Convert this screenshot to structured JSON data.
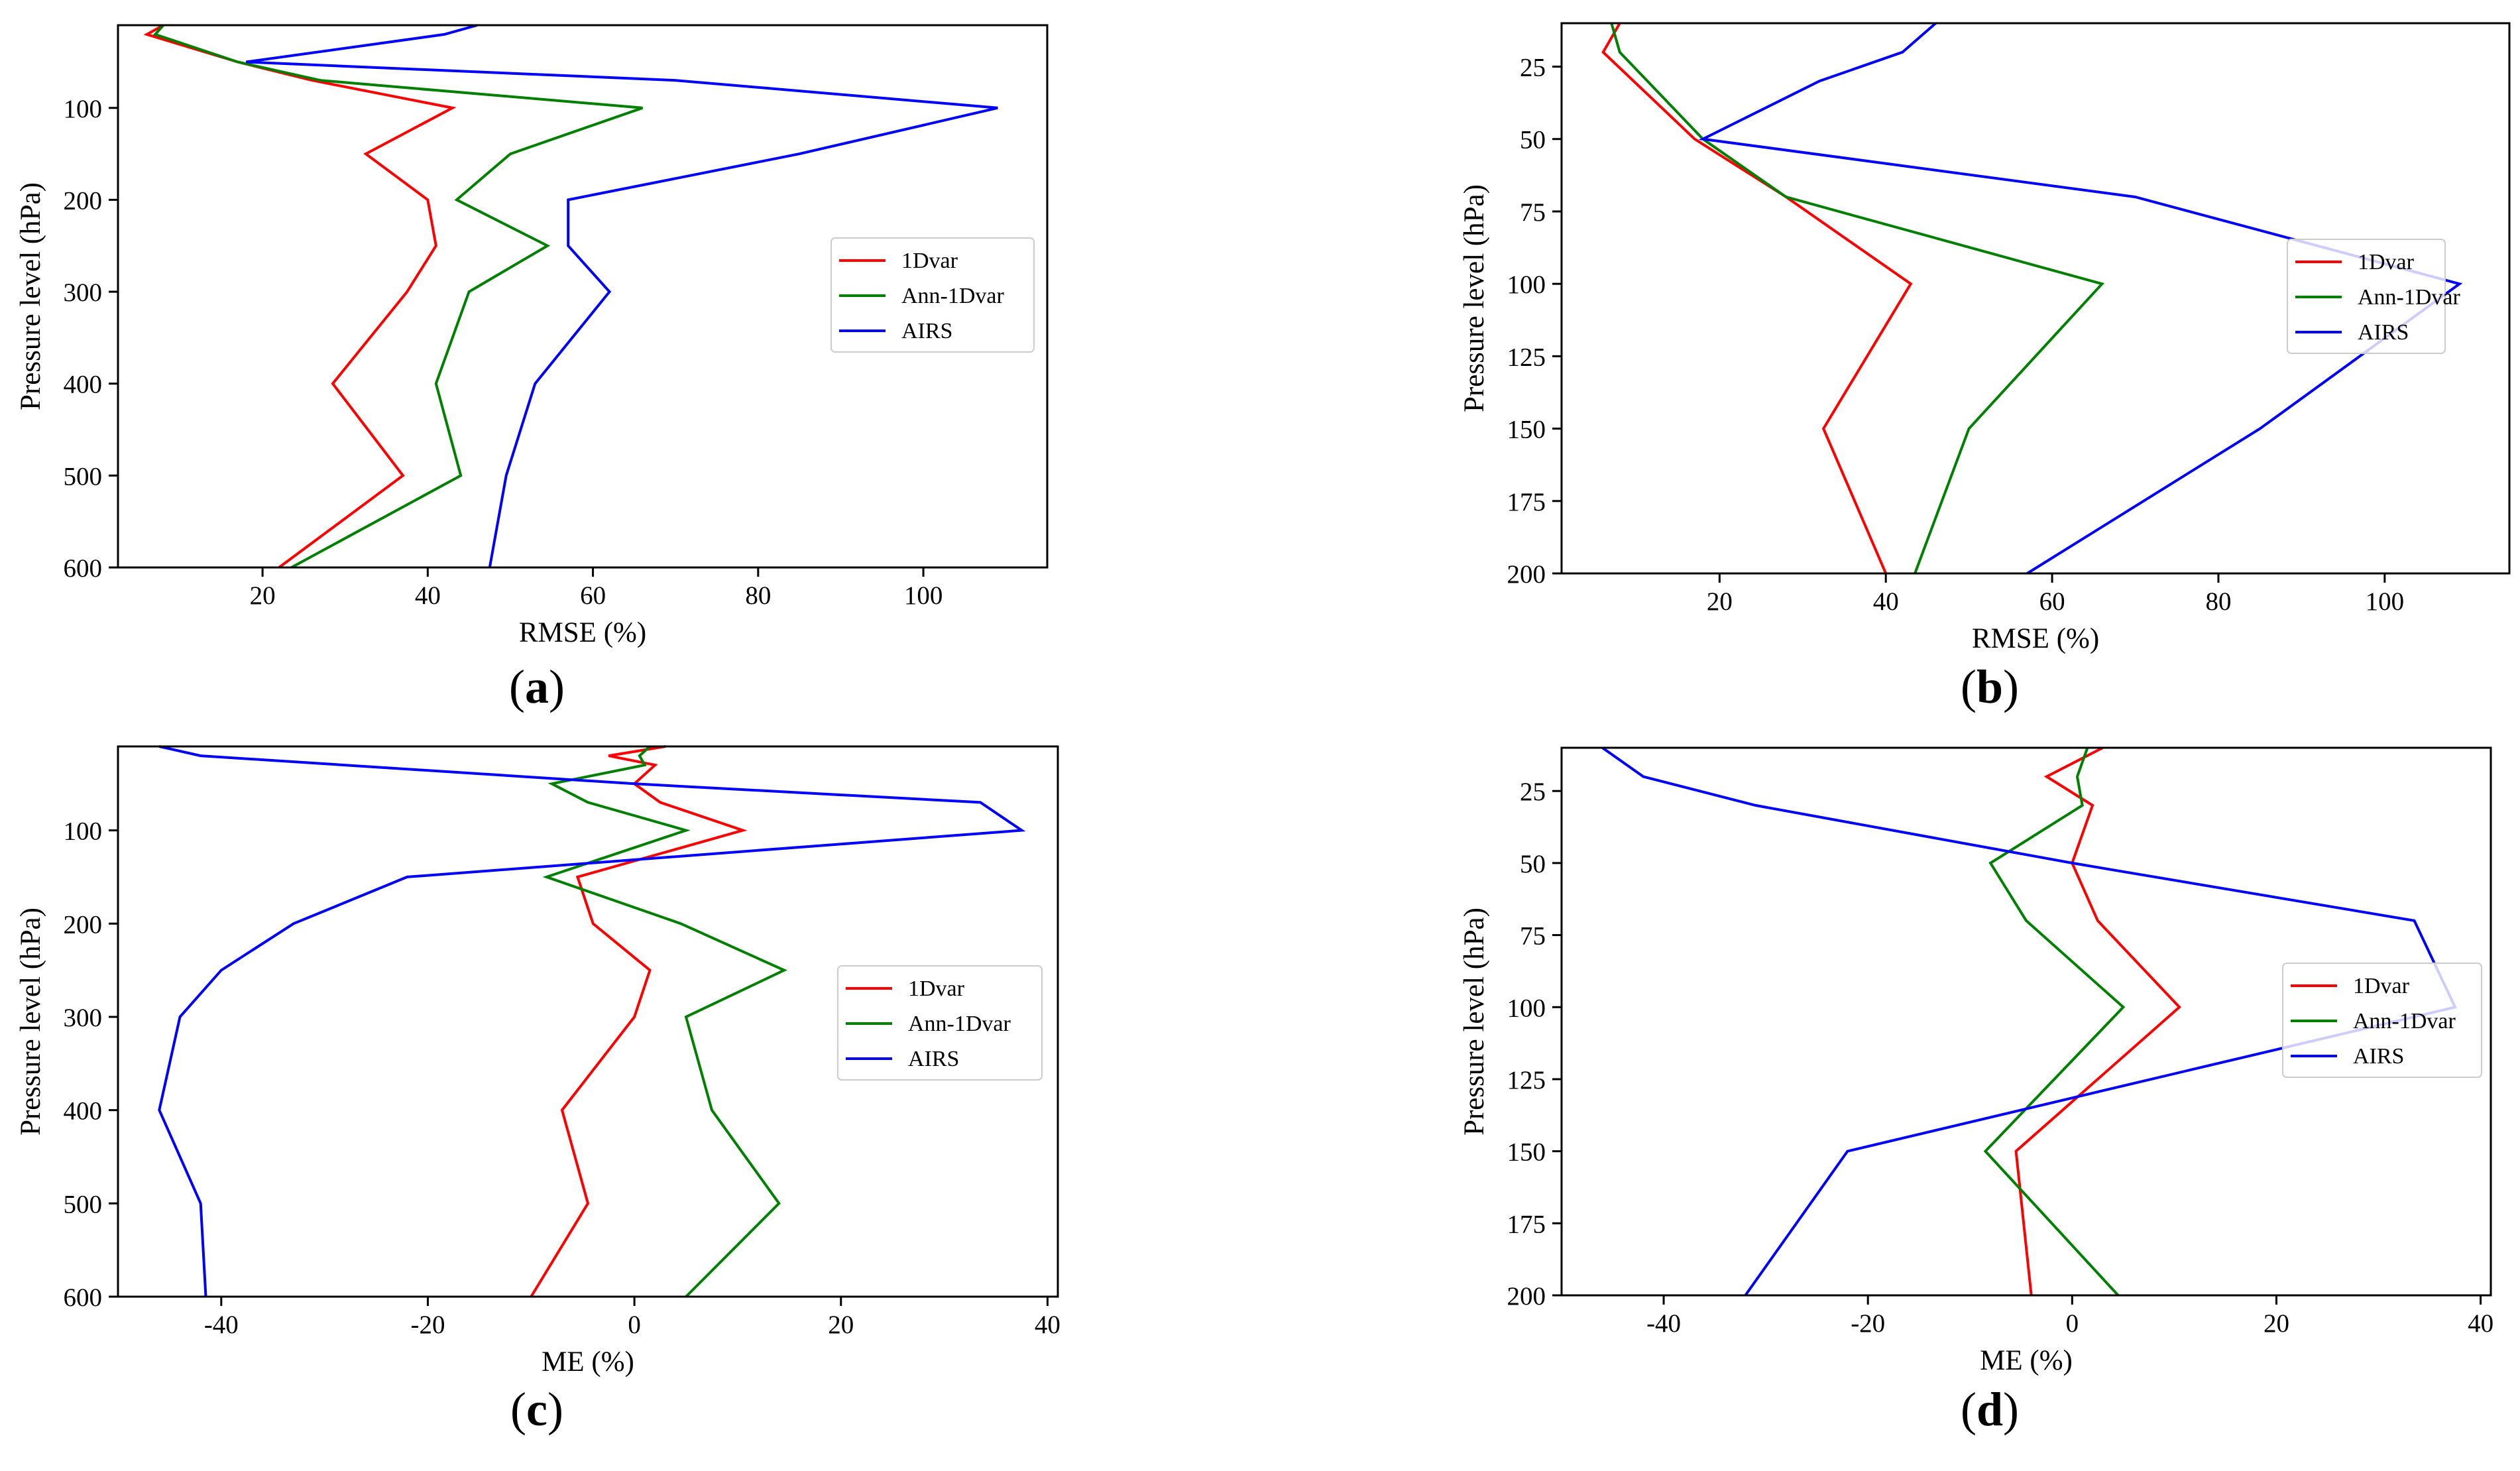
{
  "colors": {
    "1dvar": "#ff0000",
    "ann": "#008000",
    "airs": "#0000ff"
  },
  "chart_data": [
    {
      "type": "line",
      "panel_label": "a",
      "ylabel": "Pressure level (hPa)",
      "xlabel": "RMSE (%)",
      "xlim": [
        2.5,
        115
      ],
      "ylim": [
        600,
        10
      ],
      "xticks": [
        20,
        40,
        60,
        80,
        100
      ],
      "yticks": [
        100,
        200,
        300,
        400,
        500,
        600
      ],
      "xtick_labels": [
        "20",
        "40",
        "60",
        "80",
        "100"
      ],
      "ytick_labels": [
        "100",
        "200",
        "300",
        "400",
        "500",
        "600"
      ],
      "legend_position": "right",
      "series": [
        {
          "key": "1dvar",
          "name": "1Dvar",
          "color": "#ff0000",
          "x": [
            8,
            6,
            17,
            26,
            43,
            32.5,
            40,
            41,
            37.5,
            28.5,
            37,
            22
          ],
          "y": [
            10,
            20,
            50,
            70,
            100,
            150,
            200,
            250,
            300,
            400,
            500,
            600
          ]
        },
        {
          "key": "ann",
          "name": "Ann-1Dvar",
          "color": "#008000",
          "x": [
            8,
            7,
            17,
            27,
            66,
            50,
            43.5,
            54.5,
            45,
            41,
            44,
            23.5
          ],
          "y": [
            10,
            20,
            50,
            70,
            100,
            150,
            200,
            250,
            300,
            400,
            500,
            600
          ]
        },
        {
          "key": "airs",
          "name": "AIRS",
          "color": "#0000ff",
          "x": [
            46,
            42,
            18,
            70,
            109,
            85,
            57,
            57,
            62,
            53,
            49.5,
            47.5
          ],
          "y": [
            10,
            20,
            50,
            70,
            100,
            150,
            200,
            250,
            300,
            400,
            500,
            600
          ]
        }
      ]
    },
    {
      "type": "line",
      "panel_label": "b",
      "ylabel": "Pressure level (hPa)",
      "xlabel": "RMSE (%)",
      "xlim": [
        1,
        115
      ],
      "ylim": [
        200,
        10
      ],
      "xticks": [
        20,
        40,
        60,
        80,
        100
      ],
      "yticks": [
        25,
        50,
        75,
        100,
        125,
        150,
        175,
        200
      ],
      "xtick_labels": [
        "20",
        "40",
        "60",
        "80",
        "100"
      ],
      "ytick_labels": [
        "25",
        "50",
        "75",
        "100",
        "125",
        "150",
        "175",
        "200"
      ],
      "legend_position": "right",
      "series": [
        {
          "key": "1dvar",
          "name": "1Dvar",
          "color": "#ff0000",
          "x": [
            8,
            6,
            17,
            28,
            43,
            32.5,
            40
          ],
          "y": [
            10,
            20,
            50,
            70,
            100,
            150,
            200
          ]
        },
        {
          "key": "ann",
          "name": "Ann-1Dvar",
          "color": "#008000",
          "x": [
            7,
            8,
            18,
            28,
            66,
            50,
            43.5
          ],
          "y": [
            10,
            20,
            50,
            70,
            100,
            150,
            200
          ]
        },
        {
          "key": "airs",
          "name": "AIRS",
          "color": "#0000ff",
          "x": [
            46,
            42,
            32,
            18,
            70,
            109,
            85,
            57
          ],
          "y": [
            10,
            20,
            30,
            50,
            70,
            100,
            150,
            200
          ]
        }
      ]
    },
    {
      "type": "line",
      "panel_label": "c",
      "ylabel": "Pressure level (hPa)",
      "xlabel": "ME (%)",
      "xlim": [
        -50,
        41
      ],
      "ylim": [
        600,
        10
      ],
      "xticks": [
        -40,
        -20,
        0,
        20,
        40
      ],
      "yticks": [
        100,
        200,
        300,
        400,
        500,
        600
      ],
      "xtick_labels": [
        "-40",
        "-20",
        "0",
        "20",
        "40"
      ],
      "ytick_labels": [
        "100",
        "200",
        "300",
        "400",
        "500",
        "600"
      ],
      "legend_position": "right",
      "series": [
        {
          "key": "1dvar",
          "name": "1Dvar",
          "color": "#ff0000",
          "x": [
            3,
            -2.5,
            2,
            0,
            2.5,
            10.5,
            -5.5,
            -4,
            1.5,
            0,
            -7,
            -4.5,
            -10
          ],
          "y": [
            10,
            20,
            30,
            50,
            70,
            100,
            150,
            200,
            250,
            300,
            400,
            500,
            600
          ]
        },
        {
          "key": "ann",
          "name": "Ann-1Dvar",
          "color": "#008000",
          "x": [
            1.5,
            0.5,
            1,
            -8,
            -4.5,
            5,
            -8.5,
            4.5,
            14.5,
            5,
            7.5,
            14,
            5
          ],
          "y": [
            10,
            20,
            30,
            50,
            70,
            100,
            150,
            200,
            250,
            300,
            400,
            500,
            600
          ]
        },
        {
          "key": "airs",
          "name": "AIRS",
          "color": "#0000ff",
          "x": [
            -46,
            -42,
            0,
            33.5,
            37.5,
            -22,
            -33,
            -40,
            -44,
            -46,
            -42,
            -41.5
          ],
          "y": [
            10,
            20,
            50,
            70,
            100,
            150,
            200,
            250,
            300,
            400,
            500,
            600
          ]
        }
      ]
    },
    {
      "type": "line",
      "panel_label": "d",
      "ylabel": "Pressure level (hPa)",
      "xlabel": "ME (%)",
      "xlim": [
        -50,
        41
      ],
      "ylim": [
        200,
        10
      ],
      "xticks": [
        -40,
        -20,
        0,
        20,
        40
      ],
      "yticks": [
        25,
        50,
        75,
        100,
        125,
        150,
        175,
        200
      ],
      "xtick_labels": [
        "-40",
        "-20",
        "0",
        "20",
        "40"
      ],
      "ytick_labels": [
        "25",
        "50",
        "75",
        "100",
        "125",
        "150",
        "175",
        "200"
      ],
      "legend_position": "right",
      "series": [
        {
          "key": "1dvar",
          "name": "1Dvar",
          "color": "#ff0000",
          "x": [
            3,
            -2.5,
            2,
            0,
            2.5,
            10.5,
            -5.5,
            -4
          ],
          "y": [
            10,
            20,
            30,
            50,
            70,
            100,
            150,
            200
          ]
        },
        {
          "key": "ann",
          "name": "Ann-1Dvar",
          "color": "#008000",
          "x": [
            1.5,
            0.5,
            1,
            -8,
            -4.5,
            5,
            -8.5,
            4.5
          ],
          "y": [
            10,
            20,
            30,
            50,
            70,
            100,
            150,
            200
          ]
        },
        {
          "key": "airs",
          "name": "AIRS",
          "color": "#0000ff",
          "x": [
            -46,
            -42,
            -31,
            0,
            33.5,
            37.5,
            -22,
            -32
          ],
          "y": [
            10,
            20,
            30,
            50,
            70,
            100,
            150,
            200
          ]
        }
      ]
    }
  ]
}
